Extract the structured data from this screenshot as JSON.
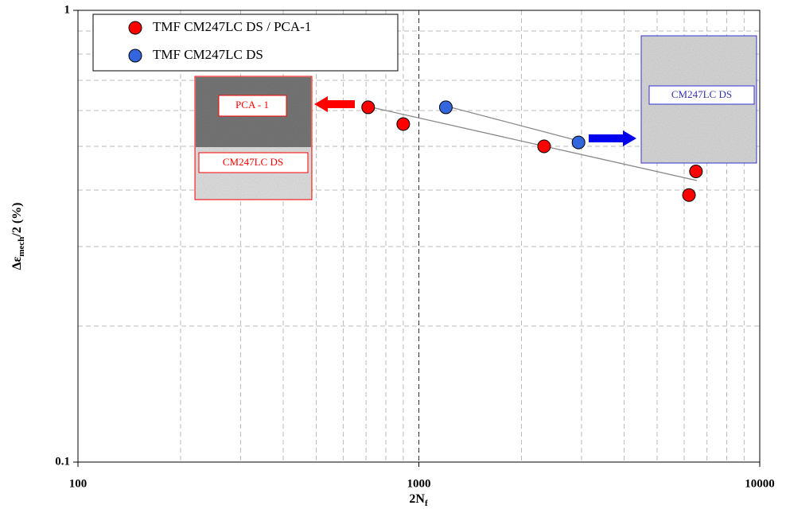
{
  "chart_data": {
    "type": "scatter",
    "x_label": {
      "main": "2N",
      "sub": "f"
    },
    "y_label": {
      "main": "Δε",
      "sub": "mech",
      "rest": "/2 (%)"
    },
    "x_scale": "log",
    "y_scale": "log",
    "xlim": [
      100,
      10000
    ],
    "xticks": [
      100,
      1000,
      10000
    ],
    "ylim": [
      0.1,
      1
    ],
    "yticks": [
      0.1,
      1
    ],
    "grid": true,
    "minor_grid": true,
    "legend": "upper left",
    "series": [
      {
        "name": "TMF CM247LC DS / PCA-1",
        "color": "#ff0000",
        "x": [
          710,
          900,
          2330,
          6500,
          6200
        ],
        "values": [
          0.61,
          0.56,
          0.5,
          0.44,
          0.39
        ]
      },
      {
        "name": "TMF CM247LC DS",
        "color": "#3366dd",
        "x": [
          1200,
          2940
        ],
        "values": [
          0.61,
          0.51
        ]
      }
    ],
    "annotations": [
      "PCA - 1",
      "CM247LC DS",
      "CM247LC DS"
    ]
  }
}
